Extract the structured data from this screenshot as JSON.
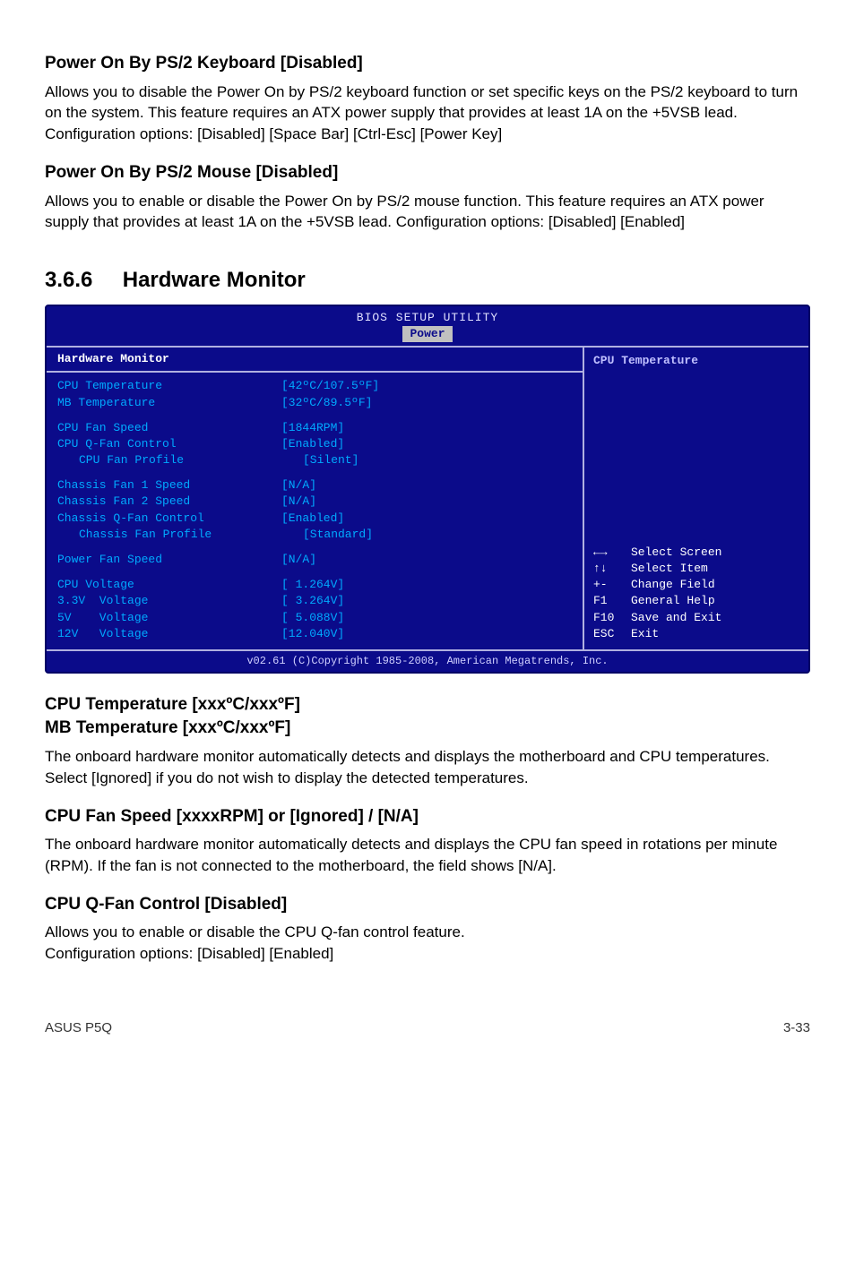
{
  "sections": {
    "ps2kb": {
      "title": "Power On By PS/2 Keyboard [Disabled]",
      "para": "Allows you to disable the Power On by PS/2 keyboard function or set specific keys on the PS/2 keyboard to turn on the system. This feature requires an ATX power supply that provides at least 1A on the +5VSB lead.\nConfiguration options: [Disabled] [Space Bar] [Ctrl-Esc] [Power Key]"
    },
    "ps2mouse": {
      "title": "Power On By PS/2 Mouse [Disabled]",
      "para": "Allows you to enable or disable the Power On by PS/2 mouse function. This feature requires an ATX power supply that provides at least 1A on the +5VSB lead. Configuration options: [Disabled] [Enabled]"
    },
    "hwmon_num": "3.6.6",
    "hwmon_title": "Hardware Monitor",
    "temp": {
      "title": "CPU Temperature [xxxºC/xxxºF]\nMB Temperature [xxxºC/xxxºF]",
      "para": "The onboard hardware monitor automatically detects and displays the motherboard and CPU temperatures. Select [Ignored] if you do not wish to display the detected temperatures."
    },
    "fanspeed": {
      "title": "CPU Fan Speed [xxxxRPM] or [Ignored] / [N/A]",
      "para": "The onboard hardware monitor automatically detects and displays the CPU fan speed in rotations per minute (RPM). If the fan is not connected to the motherboard, the field shows [N/A]."
    },
    "qfan": {
      "title": "CPU Q-Fan Control [Disabled]",
      "para": "Allows you to enable or disable the CPU Q-fan control feature.\nConfiguration options: [Disabled] [Enabled]"
    }
  },
  "bios": {
    "title": "BIOS SETUP UTILITY",
    "tab": "Power",
    "heading_left": "Hardware Monitor",
    "heading_right": "CPU Temperature",
    "rows": [
      {
        "label": "CPU Temperature",
        "value": "[42ºC/107.5ºF]"
      },
      {
        "label": "MB Temperature",
        "value": "[32ºC/89.5ºF]"
      },
      {
        "gap": true
      },
      {
        "label": "CPU Fan Speed",
        "value": "[1844RPM]"
      },
      {
        "label": "CPU Q-Fan Control",
        "value": "[Enabled]"
      },
      {
        "label": "CPU Fan Profile",
        "value": "[Silent]",
        "indent": true
      },
      {
        "gap": true
      },
      {
        "label": "Chassis Fan 1 Speed",
        "value": "[N/A]"
      },
      {
        "label": "Chassis Fan 2 Speed",
        "value": "[N/A]"
      },
      {
        "label": "Chassis Q-Fan Control",
        "value": "[Enabled]"
      },
      {
        "label": "Chassis Fan Profile",
        "value": "[Standard]",
        "indent": true
      },
      {
        "gap": true
      },
      {
        "label": "Power Fan Speed",
        "value": "[N/A]"
      },
      {
        "gap": true
      },
      {
        "label": "CPU Voltage",
        "value": "[ 1.264V]"
      },
      {
        "label": "3.3V  Voltage",
        "value": "[ 3.264V]"
      },
      {
        "label": "5V    Voltage",
        "value": "[ 5.088V]"
      },
      {
        "label": "12V   Voltage",
        "value": "[12.040V]"
      }
    ],
    "nav": [
      {
        "key": "←→",
        "label": "Select Screen"
      },
      {
        "key": "↑↓",
        "label": "Select Item"
      },
      {
        "key": "+-",
        "label": "Change Field"
      },
      {
        "key": "F1",
        "label": "General Help"
      },
      {
        "key": "F10",
        "label": "Save and Exit"
      },
      {
        "key": "ESC",
        "label": "Exit"
      }
    ],
    "footer": "v02.61 (C)Copyright 1985-2008, American Megatrends, Inc."
  },
  "page_footer": {
    "left": "ASUS P5Q",
    "right": "3-33"
  }
}
